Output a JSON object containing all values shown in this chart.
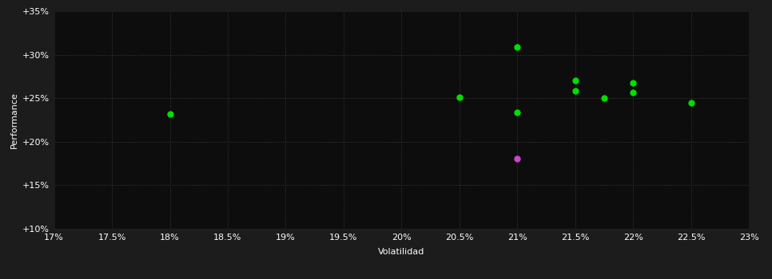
{
  "background_color": "#1c1c1c",
  "plot_bg_color": "#0d0d0d",
  "grid_color": "#3a3a3a",
  "text_color": "#ffffff",
  "xlabel": "Volatilidad",
  "ylabel": "Performance",
  "xlim": [
    0.17,
    0.23
  ],
  "ylim": [
    0.1,
    0.35
  ],
  "xticks": [
    0.17,
    0.175,
    0.18,
    0.185,
    0.19,
    0.195,
    0.2,
    0.205,
    0.21,
    0.215,
    0.22,
    0.225,
    0.23
  ],
  "yticks": [
    0.1,
    0.15,
    0.2,
    0.25,
    0.3,
    0.35
  ],
  "green_points": [
    [
      0.18,
      0.232
    ],
    [
      0.21,
      0.309
    ],
    [
      0.205,
      0.251
    ],
    [
      0.21,
      0.234
    ],
    [
      0.215,
      0.27
    ],
    [
      0.215,
      0.258
    ],
    [
      0.2175,
      0.25
    ],
    [
      0.22,
      0.268
    ],
    [
      0.22,
      0.257
    ],
    [
      0.225,
      0.245
    ]
  ],
  "magenta_points": [
    [
      0.21,
      0.181
    ]
  ],
  "green_color": "#00dd00",
  "magenta_color": "#cc44cc",
  "marker_size": 6
}
